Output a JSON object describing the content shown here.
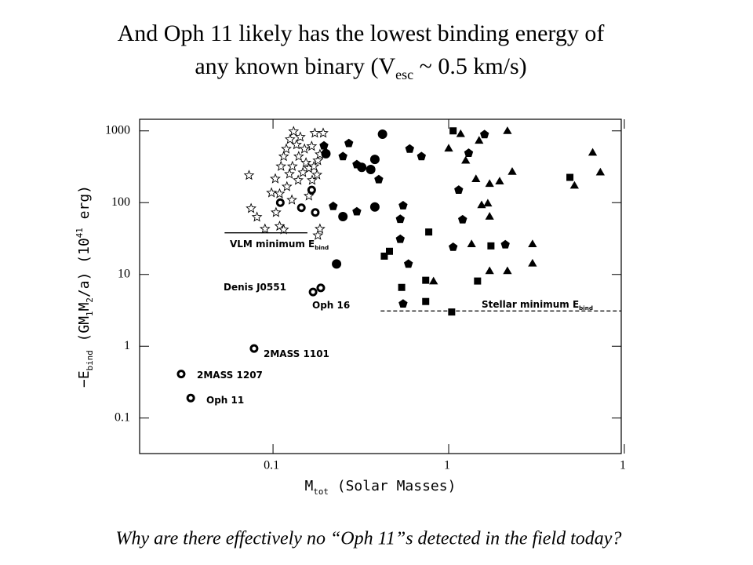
{
  "chart_data": {
    "type": "scatter",
    "title": [
      [
        {
          "text": "And Oph 11 likely has the lowest binding energy of"
        }
      ],
      [
        {
          "text": "any known binary (V"
        },
        {
          "text": "esc",
          "sub": true
        },
        {
          "text": " ~ 0.5 km/s)"
        }
      ]
    ],
    "x_label": [
      {
        "text": "M"
      },
      {
        "text": "tot",
        "sub": true
      },
      {
        "text": " (Solar Masses)"
      }
    ],
    "y_label": [
      {
        "text": "−E"
      },
      {
        "text": "bind",
        "sub": true
      },
      {
        "text": " (GM"
      },
      {
        "text": "1",
        "sub": true
      },
      {
        "text": "M"
      },
      {
        "text": "2",
        "sub": true
      },
      {
        "text": "/a) (10"
      },
      {
        "text": "41",
        "sup": true
      },
      {
        "text": " erg)"
      }
    ],
    "footer": "Why are there effectively no “Oph 11”s detected in the field today?",
    "xscale": "log",
    "yscale": "log",
    "xlim": [
      0.0174,
      9.6
    ],
    "ylim": [
      0.032,
      1450
    ],
    "xticks": [
      0.1,
      1,
      {
        "value": 10,
        "label": "1"
      }
    ],
    "yticks": [
      0.1,
      1,
      10,
      100,
      1000
    ],
    "annotations": [
      [
        {
          "text": "VLM minimum E"
        },
        {
          "text": "bind",
          "sub": true
        }
      ],
      [
        {
          "text": "Denis J0551"
        }
      ],
      [
        {
          "text": "Oph 16"
        }
      ],
      [
        {
          "text": "2MASS 1101"
        }
      ],
      [
        {
          "text": "2MASS 1207"
        }
      ],
      [
        {
          "text": "Oph 11"
        }
      ],
      [
        {
          "text": "Stellar minimum E"
        },
        {
          "text": "bind",
          "sub": true
        }
      ]
    ],
    "reference_lines": [
      {
        "y": 38,
        "x": [
          0.053,
          0.157
        ],
        "style": "solid"
      },
      {
        "y": 3.1,
        "x": [
          0.41,
          10
        ],
        "style": "dashed"
      }
    ],
    "series": [
      {
        "marker": "star-open",
        "color": "#000",
        "x": [
          0.073,
          0.075,
          0.081,
          0.098,
          0.103,
          0.109,
          0.111,
          0.115,
          0.119,
          0.125,
          0.131,
          0.136,
          0.14,
          0.143,
          0.151,
          0.154,
          0.16,
          0.166,
          0.173,
          0.18,
          0.185,
          0.193,
          0.124,
          0.129,
          0.139,
          0.104,
          0.109,
          0.115,
          0.09,
          0.185,
          0.18,
          0.16,
          0.167,
          0.148,
          0.12,
          0.128,
          0.171,
          0.178
        ],
        "values": [
          240,
          83,
          63,
          137,
          215,
          133,
          320,
          440,
          560,
          760,
          980,
          640,
          440,
          820,
          560,
          360,
          300,
          610,
          930,
          385,
          470,
          930,
          250,
          320,
          205,
          73,
          47,
          42,
          43,
          43,
          35,
          124,
          205,
          263,
          167,
          109,
          320,
          244
        ]
      },
      {
        "marker": "ring",
        "color": "#000",
        "x": [
          0.11,
          0.145,
          0.174,
          0.166,
          0.169,
          0.187,
          0.078,
          0.03,
          0.034
        ],
        "values": [
          100,
          85,
          73,
          150,
          5.7,
          6.5,
          0.93,
          0.41,
          0.19
        ]
      },
      {
        "marker": "circle",
        "color": "#000",
        "x": [
          0.42,
          0.2,
          0.32,
          0.36,
          0.38,
          0.25,
          0.38,
          0.23
        ],
        "values": [
          900,
          480,
          310,
          290,
          400,
          64,
          87,
          14
        ]
      },
      {
        "marker": "pentagon",
        "color": "#000",
        "x": [
          0.195,
          0.27,
          0.25,
          0.3,
          0.4,
          0.22,
          0.3,
          0.55,
          0.53,
          0.53,
          0.59,
          0.55,
          0.6,
          0.7,
          1.14,
          1.2,
          1.06,
          1.3,
          1.6,
          2.1
        ],
        "values": [
          620,
          670,
          440,
          340,
          210,
          89,
          75,
          91,
          59,
          31,
          14,
          3.9,
          560,
          440,
          150,
          58,
          24,
          490,
          890,
          26
        ]
      },
      {
        "marker": "square",
        "color": "#000",
        "x": [
          1.06,
          0.77,
          0.54,
          0.43,
          0.46,
          0.74,
          0.74,
          1.04,
          1.46,
          1.74,
          4.9
        ],
        "values": [
          1000,
          39,
          6.6,
          18,
          21,
          8.3,
          4.2,
          3.0,
          8.1,
          25,
          225
        ]
      },
      {
        "marker": "triangle",
        "color": "#000",
        "x": [
          1.0,
          1.17,
          1.25,
          1.49,
          1.43,
          1.54,
          1.71,
          1.67,
          1.71,
          1.95,
          2.16,
          1.35,
          0.82,
          1.71,
          2.16,
          3.0,
          3.0,
          5.2,
          6.6,
          7.3,
          2.3
        ],
        "values": [
          560,
          890,
          380,
          720,
          210,
          91,
          63,
          96,
          180,
          195,
          980,
          26,
          7.9,
          11,
          11,
          26,
          14,
          170,
          490,
          260,
          265
        ]
      }
    ]
  }
}
